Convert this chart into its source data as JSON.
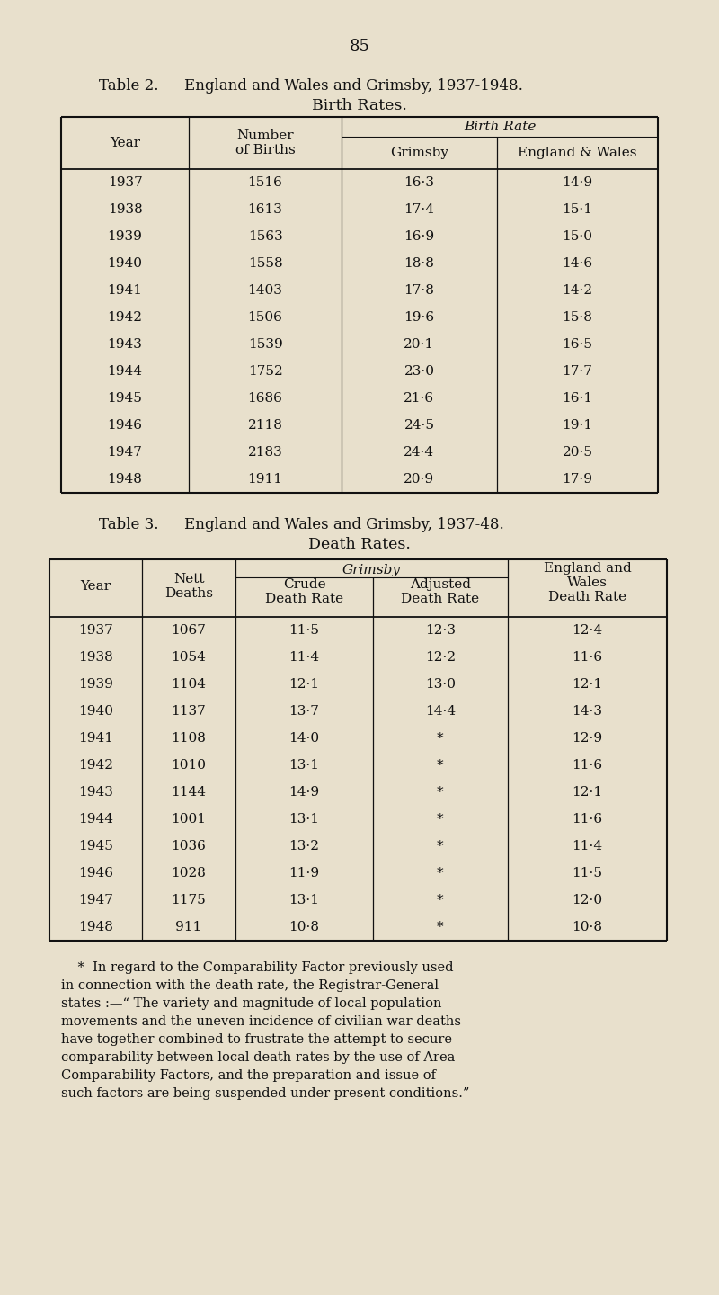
{
  "page_number": "85",
  "bg_color": "#e8e0cc",
  "text_color": "#111111",
  "table2": {
    "title": "Table 2. England and Wales and Grimsby, 1937-1948.",
    "subtitle": "Birth Rates.",
    "years": [
      "1937",
      "1938",
      "1939",
      "1940",
      "1941",
      "1942",
      "1943",
      "1944",
      "1945",
      "1946",
      "1947",
      "1948"
    ],
    "num_births": [
      "1516",
      "1613",
      "1563",
      "1558",
      "1403",
      "1506",
      "1539",
      "1752",
      "1686",
      "2118",
      "2183",
      "1911"
    ],
    "grimsby_br": [
      "16·3",
      "17·4",
      "16·9",
      "18·8",
      "17·8",
      "19·6",
      "20·1",
      "23·0",
      "21·6",
      "24·5",
      "24·4",
      "20·9"
    ],
    "ew_br": [
      "14·9",
      "15·1",
      "15·0",
      "14·6",
      "14·2",
      "15·8",
      "16·5",
      "17·7",
      "16·1",
      "19·1",
      "20·5",
      "17·9"
    ]
  },
  "table3": {
    "title": "Table 3. England and Wales and Grimsby, 1937-48.",
    "subtitle": "Death Rates.",
    "years": [
      "1937",
      "1938",
      "1939",
      "1940",
      "1941",
      "1942",
      "1943",
      "1944",
      "1945",
      "1946",
      "1947",
      "1948"
    ],
    "nett_deaths": [
      "1067",
      "1054",
      "1104",
      "1137",
      "1108",
      "1010",
      "1144",
      "1001",
      "1036",
      "1028",
      "1175",
      "911"
    ],
    "crude_dr": [
      "11·5",
      "11·4",
      "12·1",
      "13·7",
      "14·0",
      "13·1",
      "14·9",
      "13·1",
      "13·2",
      "11·9",
      "13·1",
      "10·8"
    ],
    "adjusted_dr": [
      "12·3",
      "12·2",
      "13·0",
      "14·4",
      "*",
      "*",
      "*",
      "*",
      "*",
      "*",
      "*",
      "*"
    ],
    "ew_dr": [
      "12·4",
      "11·6",
      "12·1",
      "14·3",
      "12·9",
      "11·6",
      "12·1",
      "11·6",
      "11·4",
      "11·5",
      "12·0",
      "10·8"
    ]
  },
  "footnote_lines": [
    "    *  In regard to the Comparability Factor previously used",
    "in connection with the death rate, the Registrar-General",
    "states :—“ The variety and magnitude of local population",
    "movements and the uneven incidence of civilian war deaths",
    "have together combined to frustrate the attempt to secure",
    "comparability between local death rates by the use of Area",
    "Comparability Factors, and the preparation and issue of",
    "such factors are being suspended under present conditions.”"
  ]
}
